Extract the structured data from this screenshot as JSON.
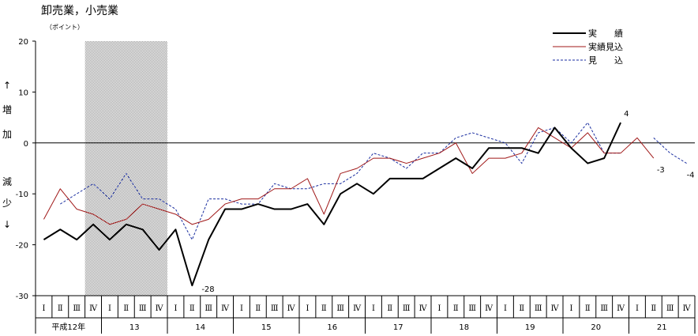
{
  "chart_data": {
    "type": "line",
    "title": "卸売業，小売業",
    "subtitle": "（ポイント）",
    "y_side_label_up": [
      "↑",
      "増",
      "加"
    ],
    "y_side_label_down": [
      "減",
      "少",
      "↓"
    ],
    "ylim": [
      -30,
      20
    ],
    "yticks": [
      20,
      10,
      0,
      -10,
      -20,
      -30
    ],
    "zero_line": true,
    "shaded_period": {
      "from_index": 3,
      "to_index": 8
    },
    "quarter_labels": [
      "Ⅰ",
      "Ⅱ",
      "Ⅲ",
      "Ⅳ"
    ],
    "years": [
      {
        "label": "平成12年",
        "start": 0,
        "quarters": 4
      },
      {
        "label": "13",
        "start": 4,
        "quarters": 4
      },
      {
        "label": "14",
        "start": 8,
        "quarters": 4
      },
      {
        "label": "15",
        "start": 12,
        "quarters": 4
      },
      {
        "label": "16",
        "start": 16,
        "quarters": 4
      },
      {
        "label": "17",
        "start": 20,
        "quarters": 4
      },
      {
        "label": "18",
        "start": 24,
        "quarters": 4
      },
      {
        "label": "19",
        "start": 28,
        "quarters": 4
      },
      {
        "label": "20",
        "start": 32,
        "quarters": 4
      },
      {
        "label": "21",
        "start": 36,
        "quarters": 4
      }
    ],
    "legend_position": "top-right",
    "series": [
      {
        "name": "実　　績",
        "color": "#000000",
        "style": "solid-thick",
        "values": [
          -19,
          -17,
          -19,
          -16,
          -19,
          -16,
          -17,
          -21,
          -17,
          -28,
          -19,
          -13,
          -13,
          -12,
          -13,
          -13,
          -12,
          -16,
          -10,
          -8,
          -10,
          -7,
          -7,
          -7,
          -5,
          -3,
          -5,
          -1,
          -1,
          -1,
          -2,
          3,
          -1,
          -4,
          -3,
          4,
          null,
          null,
          null,
          null
        ]
      },
      {
        "name": "実績見込",
        "color": "#a01818",
        "style": "solid-thin",
        "values": [
          -15,
          -9,
          -13,
          -14,
          -16,
          -15,
          -12,
          -13,
          -14,
          -16,
          -15,
          -12,
          -11,
          -11,
          -9,
          -9,
          -7,
          -14,
          -6,
          -5,
          -3,
          -3,
          -4,
          -3,
          -2,
          0,
          -6,
          -3,
          -3,
          -2,
          3,
          1,
          -1,
          2,
          -2,
          -2,
          1,
          -3,
          null,
          null
        ]
      },
      {
        "name": "見　　込",
        "color": "#1a2ea0",
        "style": "dashed",
        "values": [
          null,
          -12,
          -10,
          -8,
          -11,
          -6,
          -11,
          -11,
          -13,
          -19,
          -11,
          -11,
          -12,
          -12,
          -8,
          -9,
          -9,
          -8,
          -8,
          -6,
          -2,
          -3,
          -5,
          -2,
          -2,
          1,
          2,
          1,
          0,
          -4,
          2,
          3,
          0,
          4,
          -2,
          -2,
          null,
          1,
          -2,
          -4
        ]
      }
    ],
    "annotations": [
      {
        "text": "-28",
        "index": 9,
        "value": -28
      },
      {
        "text": "4",
        "index": 35,
        "value": 4
      },
      {
        "text": "-3",
        "index": 37,
        "value": -3
      },
      {
        "text": "-4",
        "index": 39,
        "value": -4
      }
    ]
  }
}
